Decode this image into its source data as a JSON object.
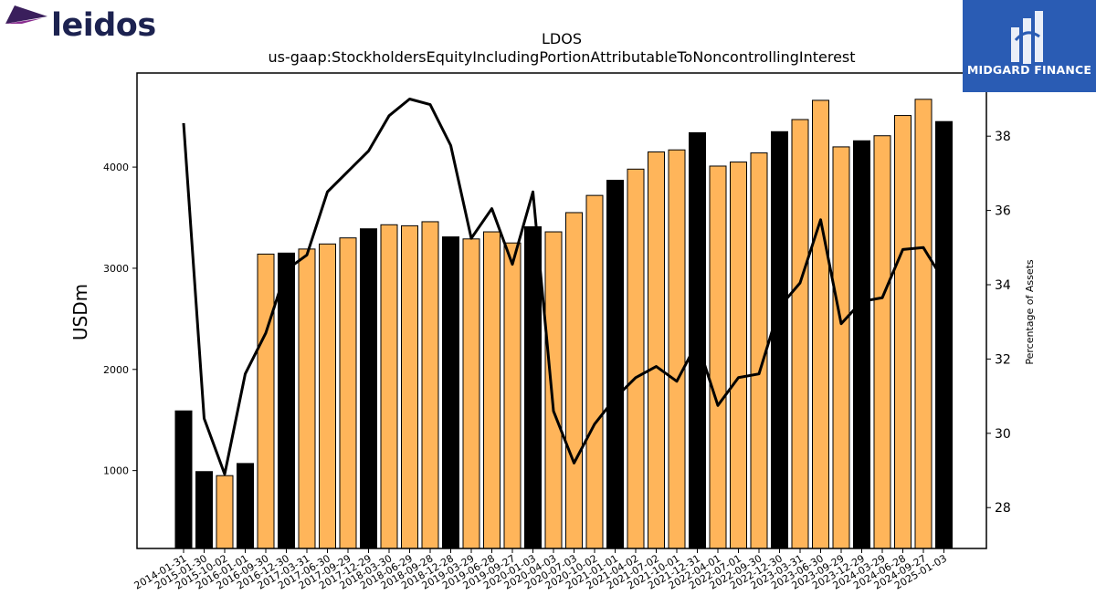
{
  "logos": {
    "left_brand": "leidos",
    "right_brand": "MIDGARD FINANCE",
    "left_colors": {
      "text": "#1c2250",
      "mark_dark": "#3a1f5c",
      "mark_light": "#8a2d8f"
    },
    "right_bg": "#2a5cb4"
  },
  "colors": {
    "bar_orange": "#ffb55a",
    "bar_black": "#000000",
    "line": "#000000"
  },
  "chart_data": {
    "type": "bar",
    "title": "LDOS",
    "subtitle": "us-gaap:StockholdersEquityIncludingPortionAttributableToNoncontrollingInterest",
    "ylabel": "USDm",
    "y2label": "Percentage of Assets",
    "ylim": [
      230,
      4930
    ],
    "y2lim": [
      26.9,
      39.7
    ],
    "yticks": [
      1000,
      2000,
      3000,
      4000
    ],
    "y2ticks": [
      28,
      30,
      32,
      34,
      36,
      38
    ],
    "grid": false,
    "categories": [
      "2014-01-31",
      "2015-01-30",
      "2015-10-02",
      "2016-01-01",
      "2016-09-30",
      "2016-12-30",
      "2017-03-31",
      "2017-06-30",
      "2017-09-29",
      "2017-12-29",
      "2018-03-30",
      "2018-06-29",
      "2018-09-28",
      "2018-12-28",
      "2019-03-29",
      "2019-06-28",
      "2019-09-27",
      "2020-01-03",
      "2020-04-03",
      "2020-07-03",
      "2020-10-02",
      "2021-01-01",
      "2021-04-02",
      "2021-07-02",
      "2021-10-01",
      "2021-12-31",
      "2022-04-01",
      "2022-07-01",
      "2022-09-30",
      "2022-12-30",
      "2023-03-31",
      "2023-06-30",
      "2023-09-29",
      "2023-12-29",
      "2024-03-29",
      "2024-06-28",
      "2024-09-27",
      "2025-01-03"
    ],
    "series": [
      {
        "type": "bar",
        "values": [
          1590,
          990,
          950,
          1070,
          3140,
          3150,
          3190,
          3240,
          3300,
          3390,
          3430,
          3420,
          3460,
          3310,
          3290,
          3360,
          3250,
          3410,
          3360,
          3550,
          3720,
          3870,
          3980,
          4150,
          4170,
          4340,
          4010,
          4050,
          4140,
          4350,
          4470,
          4660,
          4200,
          4260,
          4310,
          4510,
          4670,
          4450
        ],
        "colors": [
          "black",
          "black",
          "orange",
          "black",
          "orange",
          "black",
          "orange",
          "orange",
          "orange",
          "black",
          "orange",
          "orange",
          "orange",
          "black",
          "orange",
          "orange",
          "orange",
          "black",
          "orange",
          "orange",
          "orange",
          "black",
          "orange",
          "orange",
          "orange",
          "black",
          "orange",
          "orange",
          "orange",
          "black",
          "orange",
          "orange",
          "orange",
          "black",
          "orange",
          "orange",
          "orange",
          "black"
        ]
      },
      {
        "type": "line",
        "axis": "right",
        "values": [
          38.35,
          30.4,
          28.9,
          31.6,
          32.7,
          34.4,
          34.8,
          36.5,
          37.05,
          37.6,
          38.55,
          39.0,
          38.85,
          37.75,
          35.25,
          36.05,
          34.55,
          36.5,
          30.6,
          29.2,
          30.25,
          30.95,
          31.5,
          31.8,
          31.4,
          32.45,
          30.75,
          31.5,
          31.6,
          33.4,
          34.05,
          35.75,
          32.95,
          33.55,
          33.65,
          34.95,
          35.0,
          34.1
        ]
      }
    ]
  }
}
